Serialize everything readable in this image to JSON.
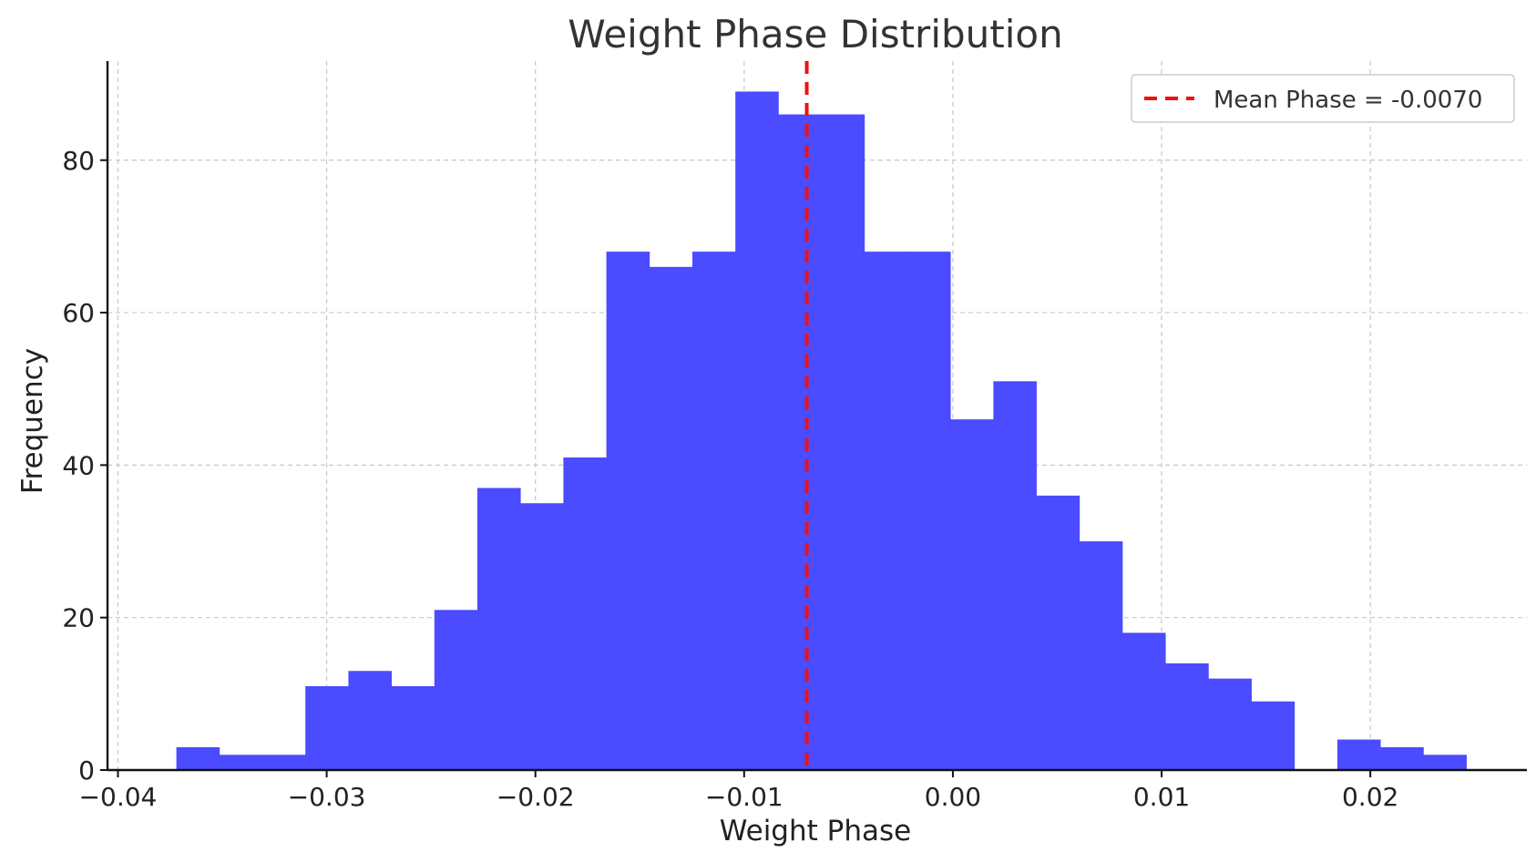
{
  "chart_data": {
    "type": "bar",
    "title": "Weight Phase Distribution",
    "xlabel": "Weight Phase",
    "ylabel": "Frequency",
    "xlim": [
      -0.0405,
      0.0275
    ],
    "ylim": [
      0,
      93
    ],
    "grid": true,
    "legend_position": "top-right",
    "x_ticks": [
      {
        "value": -0.04,
        "label": "−0.04"
      },
      {
        "value": -0.03,
        "label": "−0.03"
      },
      {
        "value": -0.02,
        "label": "−0.02"
      },
      {
        "value": -0.01,
        "label": "−0.01"
      },
      {
        "value": 0.0,
        "label": "0.00"
      },
      {
        "value": 0.01,
        "label": "0.01"
      },
      {
        "value": 0.02,
        "label": "0.02"
      }
    ],
    "y_ticks": [
      {
        "value": 0,
        "label": "0"
      },
      {
        "value": 20,
        "label": "20"
      },
      {
        "value": 40,
        "label": "40"
      },
      {
        "value": 60,
        "label": "60"
      },
      {
        "value": 80,
        "label": "80"
      }
    ],
    "bin_edges": [
      -0.0372,
      -0.03514,
      -0.03308,
      -0.03102,
      -0.02896,
      -0.0269,
      -0.02484,
      -0.02278,
      -0.02072,
      -0.01866,
      -0.0166,
      -0.01454,
      -0.01248,
      -0.01042,
      -0.00836,
      -0.0063,
      -0.00424,
      -0.00218,
      -0.00012,
      0.00194,
      0.004,
      0.00606,
      0.00812,
      0.01018,
      0.01224,
      0.0143,
      0.01636,
      0.01842,
      0.02048,
      0.02254,
      0.0246
    ],
    "values": [
      3,
      2,
      2,
      11,
      13,
      11,
      21,
      37,
      35,
      41,
      68,
      66,
      68,
      89,
      86,
      86,
      68,
      68,
      46,
      51,
      36,
      30,
      18,
      14,
      12,
      9,
      0,
      4,
      3,
      2
    ],
    "mean_line": {
      "value": -0.007,
      "label": "Mean Phase = -0.0070"
    },
    "colors": {
      "bars": "#4B4BFF",
      "mean_line": "#ee1111",
      "grid": "#c8c8c8",
      "axis": "#111111"
    }
  }
}
